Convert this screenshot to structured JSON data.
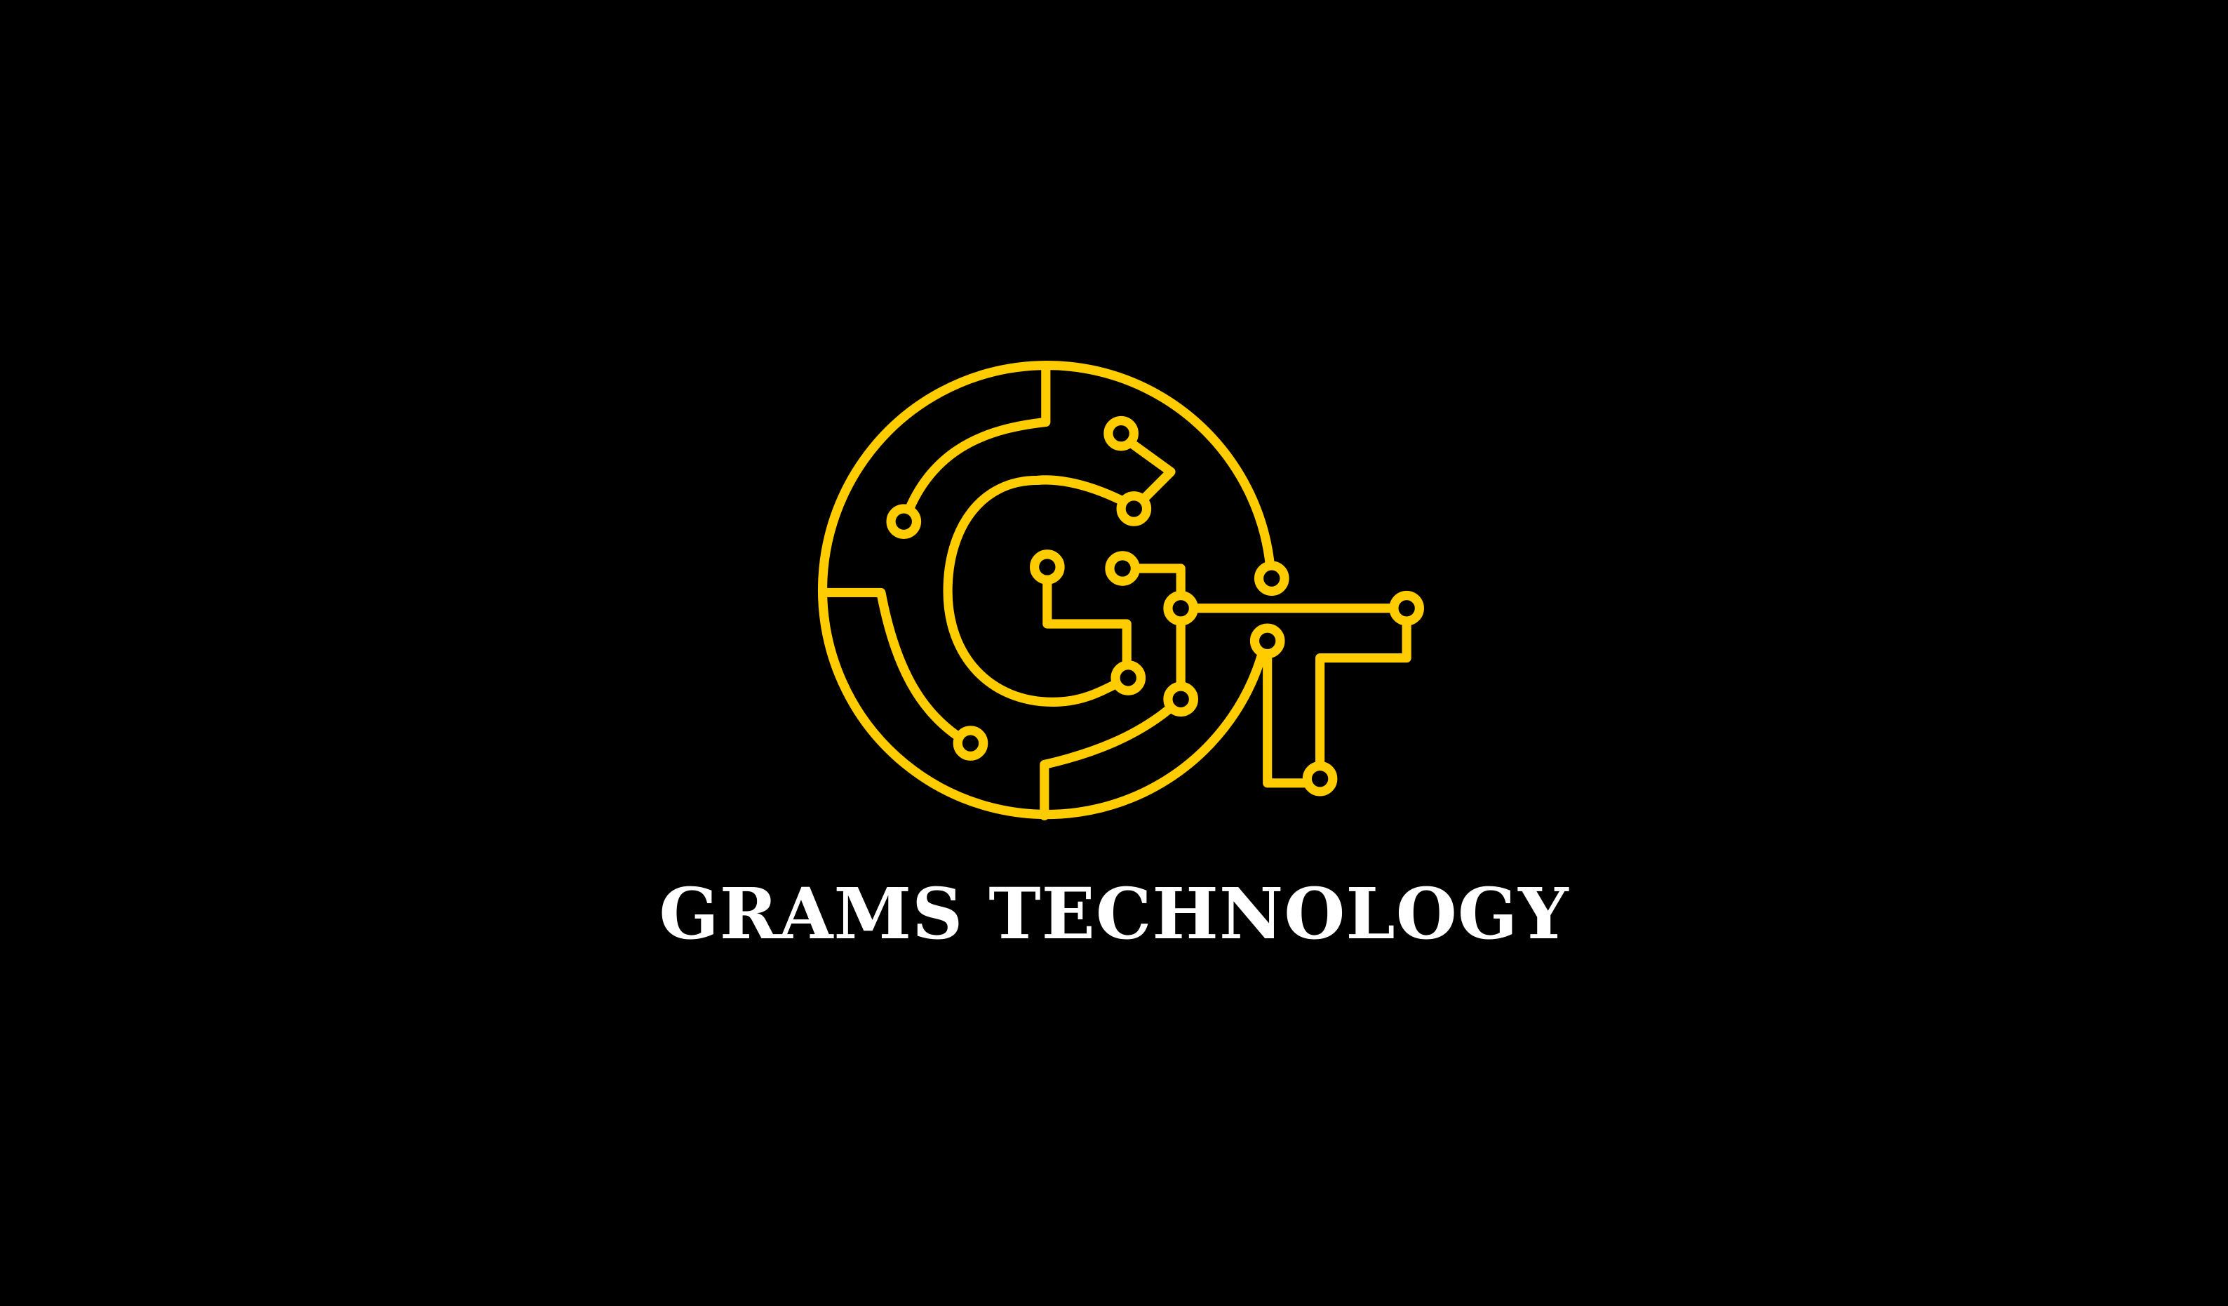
{
  "brand": {
    "name": "GRAMS TECHNOLOGY",
    "logo_icon": "circuit-board-gt-monogram-icon",
    "colors": {
      "background": "#000000",
      "accent": "#FFCC00",
      "text": "#FFFFFF"
    }
  }
}
